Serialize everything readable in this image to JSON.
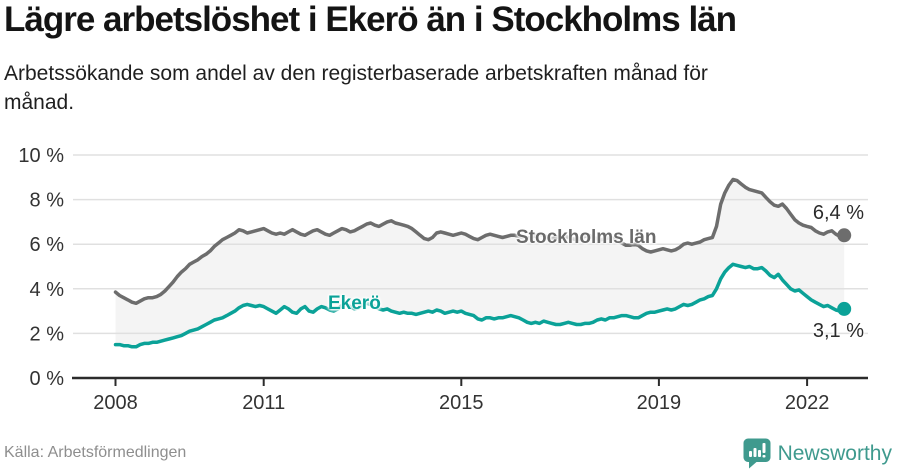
{
  "header": {
    "title": "Lägre arbetslöshet i Ekerö än i Stockholms län",
    "subtitle_line1": "Arbetssökande som andel av den registerbaserade arbetskraften månad för",
    "subtitle_line2": "månad."
  },
  "chart_data": {
    "type": "line",
    "unit": "%",
    "x_interval": "monthly",
    "x_domain": [
      "2008-01",
      "2022-10"
    ],
    "ylim": [
      0,
      10
    ],
    "grid": "horizontal",
    "legend_position": "inline-labels",
    "fill_between_color": "#f4f4f4",
    "y_ticks": [
      {
        "label": "0 %",
        "value": 0
      },
      {
        "label": "2 %",
        "value": 2
      },
      {
        "label": "4 %",
        "value": 4
      },
      {
        "label": "6 %",
        "value": 6
      },
      {
        "label": "8 %",
        "value": 8
      },
      {
        "label": "10 %",
        "value": 10
      }
    ],
    "x_ticks": [
      {
        "label": "2008",
        "month": 0
      },
      {
        "label": "2011",
        "month": 36
      },
      {
        "label": "2015",
        "month": 84
      },
      {
        "label": "2019",
        "month": 132
      },
      {
        "label": "2022",
        "month": 168
      }
    ],
    "series": [
      {
        "name": "Stockholms län",
        "color": "#6d6d6d",
        "end_label": "6,4 %",
        "end_value": 6.4,
        "values": [
          3.85,
          3.7,
          3.6,
          3.5,
          3.4,
          3.35,
          3.45,
          3.55,
          3.6,
          3.6,
          3.65,
          3.75,
          3.9,
          4.1,
          4.3,
          4.55,
          4.75,
          4.9,
          5.1,
          5.2,
          5.3,
          5.45,
          5.55,
          5.7,
          5.9,
          6.05,
          6.2,
          6.3,
          6.4,
          6.5,
          6.65,
          6.6,
          6.5,
          6.55,
          6.6,
          6.65,
          6.7,
          6.6,
          6.5,
          6.45,
          6.5,
          6.45,
          6.55,
          6.65,
          6.55,
          6.45,
          6.4,
          6.5,
          6.6,
          6.65,
          6.55,
          6.45,
          6.4,
          6.5,
          6.6,
          6.7,
          6.65,
          6.55,
          6.6,
          6.7,
          6.8,
          6.9,
          6.95,
          6.85,
          6.8,
          6.9,
          7.0,
          7.05,
          6.95,
          6.9,
          6.85,
          6.8,
          6.7,
          6.55,
          6.4,
          6.25,
          6.2,
          6.3,
          6.5,
          6.55,
          6.5,
          6.45,
          6.4,
          6.45,
          6.5,
          6.45,
          6.35,
          6.25,
          6.2,
          6.3,
          6.4,
          6.45,
          6.4,
          6.35,
          6.3,
          6.35,
          6.4,
          6.4,
          6.35,
          6.3,
          6.25,
          6.3,
          6.4,
          6.45,
          6.4,
          6.3,
          6.25,
          6.3,
          6.35,
          6.4,
          6.3,
          6.25,
          6.2,
          6.25,
          6.35,
          6.4,
          6.3,
          6.25,
          6.2,
          6.25,
          6.3,
          6.25,
          6.15,
          6.05,
          5.95,
          5.95,
          6.0,
          5.95,
          5.8,
          5.7,
          5.65,
          5.7,
          5.75,
          5.8,
          5.75,
          5.7,
          5.75,
          5.85,
          6.0,
          6.05,
          6.0,
          6.05,
          6.1,
          6.2,
          6.25,
          6.3,
          6.8,
          7.8,
          8.3,
          8.65,
          8.9,
          8.85,
          8.7,
          8.55,
          8.45,
          8.4,
          8.35,
          8.3,
          8.1,
          7.9,
          7.75,
          7.7,
          7.8,
          7.6,
          7.35,
          7.1,
          6.95,
          6.85,
          6.8,
          6.75,
          6.6,
          6.5,
          6.45,
          6.55,
          6.6,
          6.45,
          6.35,
          6.4
        ]
      },
      {
        "name": "Ekerö",
        "color": "#0ba298",
        "end_label": "3,1 %",
        "end_value": 3.1,
        "values": [
          1.5,
          1.5,
          1.45,
          1.45,
          1.4,
          1.4,
          1.5,
          1.55,
          1.55,
          1.6,
          1.6,
          1.65,
          1.7,
          1.75,
          1.8,
          1.85,
          1.9,
          2.0,
          2.1,
          2.15,
          2.2,
          2.3,
          2.4,
          2.5,
          2.6,
          2.65,
          2.7,
          2.8,
          2.9,
          3.0,
          3.15,
          3.25,
          3.3,
          3.25,
          3.2,
          3.25,
          3.2,
          3.1,
          3.0,
          2.9,
          3.05,
          3.2,
          3.1,
          2.95,
          2.9,
          3.1,
          3.2,
          3.0,
          2.95,
          3.1,
          3.2,
          3.15,
          3.05,
          3.0,
          3.1,
          3.25,
          3.3,
          3.2,
          3.1,
          3.15,
          3.3,
          3.35,
          3.3,
          3.2,
          3.1,
          3.05,
          3.1,
          3.0,
          2.95,
          2.9,
          2.95,
          2.9,
          2.9,
          2.85,
          2.9,
          2.95,
          3.0,
          2.95,
          3.05,
          3.0,
          2.9,
          2.95,
          3.0,
          2.95,
          3.0,
          2.9,
          2.85,
          2.8,
          2.65,
          2.6,
          2.7,
          2.7,
          2.65,
          2.7,
          2.7,
          2.75,
          2.8,
          2.75,
          2.7,
          2.6,
          2.5,
          2.45,
          2.5,
          2.45,
          2.55,
          2.5,
          2.45,
          2.4,
          2.4,
          2.45,
          2.5,
          2.45,
          2.4,
          2.4,
          2.45,
          2.45,
          2.5,
          2.6,
          2.65,
          2.6,
          2.7,
          2.7,
          2.75,
          2.8,
          2.8,
          2.75,
          2.7,
          2.7,
          2.8,
          2.9,
          2.95,
          2.95,
          3.0,
          3.05,
          3.1,
          3.05,
          3.1,
          3.2,
          3.3,
          3.25,
          3.3,
          3.4,
          3.5,
          3.55,
          3.65,
          3.7,
          4.0,
          4.45,
          4.75,
          4.95,
          5.1,
          5.05,
          5.0,
          4.95,
          5.0,
          4.9,
          4.9,
          4.95,
          4.8,
          4.6,
          4.5,
          4.65,
          4.4,
          4.2,
          4.0,
          3.9,
          3.95,
          3.8,
          3.65,
          3.5,
          3.4,
          3.3,
          3.2,
          3.25,
          3.15,
          3.05,
          3.0,
          3.1
        ]
      }
    ]
  },
  "footer": {
    "source": "Källa: Arbetsförmedlingen",
    "brand": "Newsworthy"
  },
  "colors": {
    "axis": "#2b2b2b",
    "grid": "#e0e0e0",
    "tick_text": "#333333",
    "brand_teal": "#3f9a8e"
  }
}
